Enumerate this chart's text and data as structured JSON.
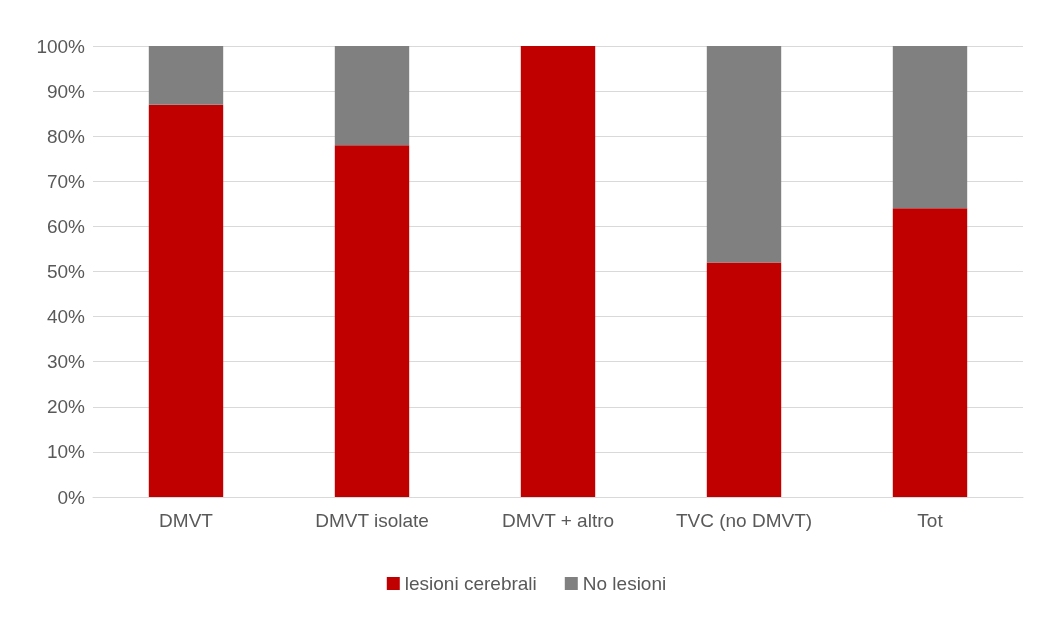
{
  "chart_data": {
    "type": "bar",
    "stacked": true,
    "categories": [
      "DMVT",
      "DMVT isolate",
      "DMVT + altro",
      "TVC (no DMVT)",
      "Tot"
    ],
    "series": [
      {
        "name": "lesioni cerebrali",
        "color": "#c00000",
        "values": [
          87,
          78,
          100,
          52,
          64
        ]
      },
      {
        "name": "No lesioni",
        "color": "#808080",
        "values": [
          13,
          22,
          0,
          48,
          36
        ]
      }
    ],
    "ylim": [
      0,
      100
    ],
    "yticks": [
      {
        "value": 0,
        "label": "0%"
      },
      {
        "value": 10,
        "label": "10%"
      },
      {
        "value": 20,
        "label": "20%"
      },
      {
        "value": 30,
        "label": "30%"
      },
      {
        "value": 40,
        "label": "40%"
      },
      {
        "value": 50,
        "label": "50%"
      },
      {
        "value": 60,
        "label": "60%"
      },
      {
        "value": 70,
        "label": "70%"
      },
      {
        "value": 80,
        "label": "80%"
      },
      {
        "value": 90,
        "label": "90%"
      },
      {
        "value": 100,
        "label": "100%"
      }
    ],
    "grid": "y",
    "legend": "bottom"
  }
}
